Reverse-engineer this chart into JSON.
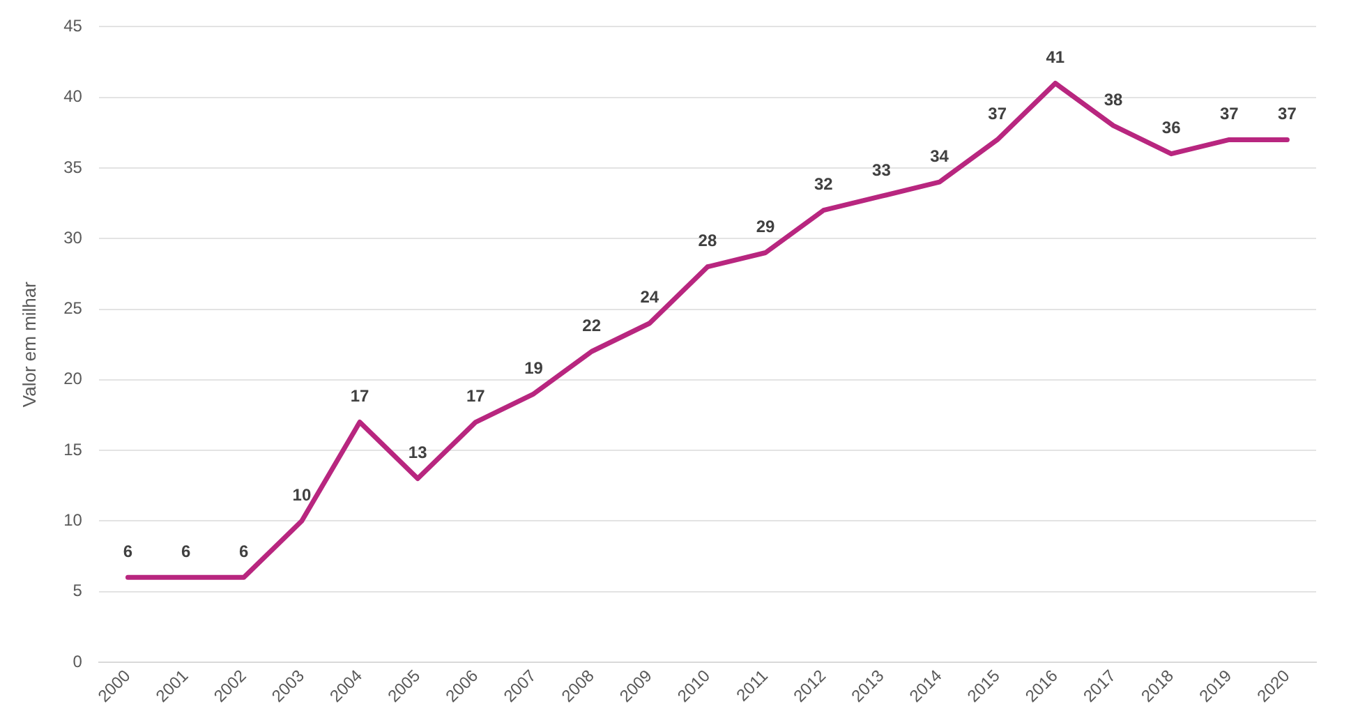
{
  "chart_data": {
    "type": "line",
    "ylabel": "Valor em milhar",
    "categories": [
      "2000",
      "2001",
      "2002",
      "2003",
      "2004",
      "2005",
      "2006",
      "2007",
      "2008",
      "2009",
      "2010",
      "2011",
      "2012",
      "2013",
      "2014",
      "2015",
      "2016",
      "2017",
      "2018",
      "2019",
      "2020"
    ],
    "series": [
      {
        "color": "#b8267f",
        "values": [
          6,
          6,
          6,
          10,
          17,
          13,
          17,
          19,
          22,
          24,
          28,
          29,
          32,
          33,
          34,
          37,
          41,
          38,
          36,
          37,
          37
        ]
      }
    ],
    "ylim": [
      0,
      45
    ],
    "yticks": [
      0,
      5,
      10,
      15,
      20,
      25,
      30,
      35,
      40,
      45
    ],
    "grid": "y",
    "legend": false,
    "marker": "none",
    "line_style": "solid",
    "data_labels": true
  }
}
